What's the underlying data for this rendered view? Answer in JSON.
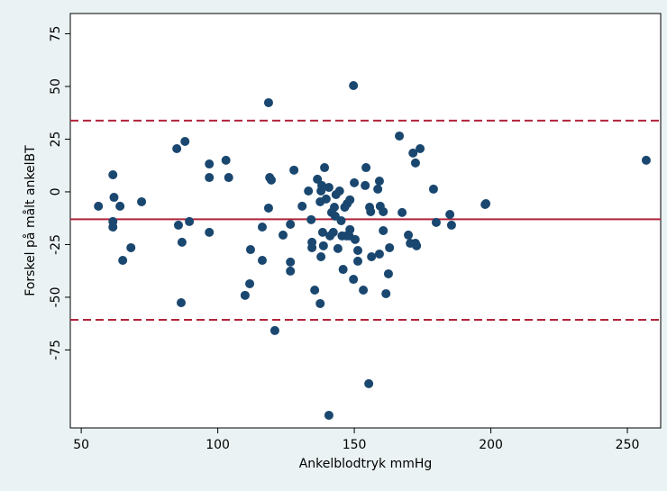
{
  "chart_data": {
    "type": "scatter",
    "xlabel": "Ankelblodtryk mmHg",
    "ylabel": "Forskel på målt ankelBT",
    "color": "#1a476f",
    "xlim": [
      46,
      262.2
    ],
    "xticks": [
      50,
      100,
      150,
      200,
      250
    ],
    "ylim": [
      -112,
      84.6
    ],
    "yticks": [
      75,
      50,
      25,
      0,
      -25,
      -50,
      -75
    ],
    "reference_lines": [
      {
        "value": 33.8,
        "style": "dashed",
        "color": "#b0243a"
      },
      {
        "value": -13,
        "style": "solid",
        "color": "#b0243a"
      },
      {
        "value": -60.7,
        "style": "dashed",
        "color": "#b0243a"
      }
    ],
    "x": [
      56.3,
      61.6,
      62,
      61.6,
      61.6,
      64.2,
      65.2,
      68.2,
      72.1,
      85,
      88,
      96.9,
      96.9,
      96.9,
      85.6,
      86.9,
      86.6,
      89.6,
      103,
      104,
      110,
      111.7,
      112,
      116.3,
      116.3,
      118.6,
      119,
      119.6,
      118.6,
      120.9,
      123.9,
      126.6,
      126.6,
      126.6,
      127.9,
      130.9,
      133.2,
      134.2,
      134.5,
      134.5,
      135.5,
      136.5,
      137.5,
      137.8,
      138.1,
      139.1,
      138.4,
      137.8,
      137.5,
      138.7,
      139.7,
      140.7,
      141.1,
      141.7,
      142.3,
      143,
      142.7,
      143.3,
      144,
      144.6,
      145.2,
      145.5,
      145.9,
      146.5,
      147.1,
      147.4,
      148.4,
      148.4,
      148.1,
      149.7,
      150,
      149.7,
      150.3,
      151.3,
      151.3,
      153.3,
      154.3,
      154,
      155.6,
      156,
      155.3,
      156.3,
      158.6,
      159.2,
      159.5,
      160.6,
      160.6,
      159.2,
      161.6,
      162.5,
      162.9,
      166.5,
      167.5,
      169.8,
      170.5,
      171.5,
      172.4,
      172.4,
      172.8,
      174.1,
      179,
      180,
      185,
      185.6,
      197.9,
      198.2,
      256.9,
      140.7
    ],
    "values": [
      -6.8,
      8.1,
      -2.6,
      -14.1,
      -16.7,
      -6.8,
      -32.5,
      -26.5,
      -4.7,
      20.5,
      23.9,
      13.2,
      6.8,
      -19.2,
      -15.8,
      -23.9,
      -52.6,
      -14.1,
      15,
      6.8,
      -49.1,
      -43.6,
      -27.4,
      -16.7,
      -32.5,
      42.3,
      6.8,
      5.6,
      -7.7,
      -65.8,
      -20.5,
      -15.4,
      -33.3,
      -37.6,
      10.3,
      -6.8,
      0.4,
      -13.2,
      -26.5,
      -23.9,
      -46.6,
      6,
      -4.7,
      0.4,
      3,
      11.5,
      -19.2,
      -30.8,
      -53,
      -25.6,
      -3.4,
      2.1,
      -20.9,
      -9.8,
      -19.2,
      -11.5,
      -7.3,
      -1.3,
      -26.9,
      0.4,
      -13.7,
      -20.9,
      -36.8,
      -7.3,
      -20.9,
      -5.6,
      -3.8,
      -17.9,
      -20.9,
      50.4,
      4.3,
      -41.5,
      -22.6,
      -32.9,
      -27.8,
      -46.6,
      11.5,
      3,
      -7.3,
      -9.4,
      -91,
      -30.8,
      1.3,
      5.1,
      -6.8,
      -9.4,
      -18.4,
      -29.5,
      -48.3,
      -38.9,
      -26.5,
      26.5,
      -9.8,
      -20.5,
      -24.4,
      18.4,
      -24.4,
      13.7,
      -25.6,
      20.5,
      1.3,
      -14.5,
      -10.7,
      -15.8,
      -6,
      -5.6,
      15,
      -106
    ]
  }
}
